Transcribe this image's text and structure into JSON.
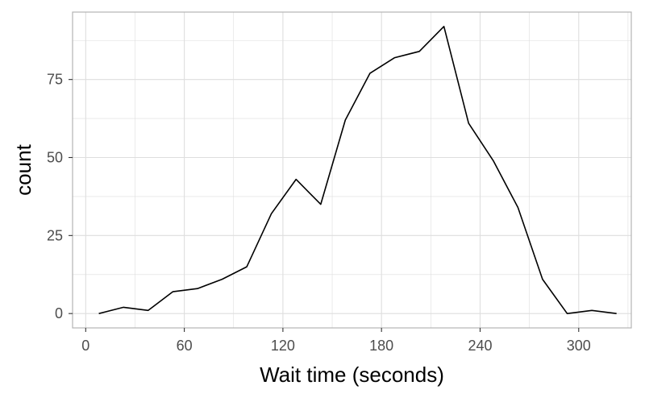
{
  "chart_data": {
    "type": "line",
    "title": "",
    "xlabel": "Wait time (seconds)",
    "ylabel": "count",
    "xlim": [
      -8,
      332
    ],
    "ylim": [
      -4.6,
      96.6
    ],
    "grid": true,
    "x_ticks": [
      0,
      60,
      120,
      180,
      240,
      300
    ],
    "y_ticks": [
      0,
      25,
      50,
      75
    ],
    "x_tick_labels": [
      "0",
      "60",
      "120",
      "180",
      "240",
      "300"
    ],
    "y_tick_labels": [
      "0",
      "25",
      "50",
      "75"
    ],
    "colors": {
      "line": "#000000",
      "grid": "#dedede",
      "panel_border": "#b3b3b3"
    },
    "series": [
      {
        "x": [
          8,
          23,
          38,
          53,
          68,
          83,
          98,
          113,
          128,
          143,
          158,
          173,
          188,
          203,
          218,
          233,
          248,
          263,
          278,
          293,
          308,
          323
        ],
        "y": [
          0,
          2,
          1,
          7,
          8,
          11,
          15,
          32,
          43,
          35,
          62,
          77,
          82,
          84,
          92,
          61,
          49,
          34,
          11,
          0,
          1,
          0
        ]
      }
    ]
  }
}
